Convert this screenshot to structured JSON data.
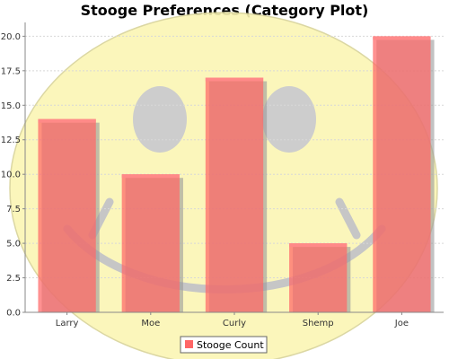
{
  "chart_data": {
    "type": "bar",
    "title": "Stooge Preferences (Category Plot)",
    "categories": [
      "Larry",
      "Moe",
      "Curly",
      "Shemp",
      "Joe"
    ],
    "series": [
      {
        "name": "Stooge Count",
        "values": [
          14,
          10,
          17,
          5,
          20
        ],
        "color": "#ff6666"
      }
    ],
    "ylim": [
      0,
      21
    ],
    "yticks": [
      "0.0",
      "2.5",
      "5.0",
      "7.5",
      "10.0",
      "12.5",
      "15.0",
      "17.5",
      "20.0"
    ],
    "grid": true,
    "legend_position": "bottom",
    "background_image": "smiley-face"
  }
}
